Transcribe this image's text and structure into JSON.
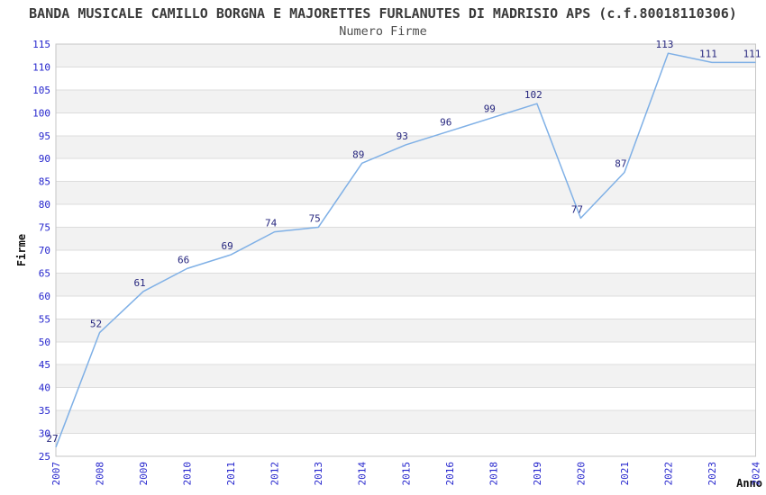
{
  "chart_data": {
    "type": "line",
    "title": "BANDA MUSICALE CAMILLO BORGNA E MAJORETTES FURLANUTES DI MADRISIO APS (c.f.80018110306)",
    "subtitle": "Numero Firme",
    "xlabel": "Anno",
    "ylabel": "Firme",
    "categories": [
      "2007",
      "2008",
      "2009",
      "2010",
      "2011",
      "2012",
      "2013",
      "2014",
      "2015",
      "2016",
      "2018",
      "2019",
      "2020",
      "2021",
      "2022",
      "2023",
      "2024"
    ],
    "values": [
      27,
      52,
      61,
      66,
      69,
      74,
      75,
      89,
      93,
      96,
      99,
      102,
      77,
      87,
      113,
      111,
      111
    ],
    "ylim": [
      25,
      115
    ],
    "ytick_step": 5,
    "grid": true,
    "legend": "none",
    "band_pattern": "alternating horizontal bands of 5 units, gray topmost",
    "style": {
      "line_color": "#7fb0e6",
      "tick_label_color": "#2525cd",
      "data_label_color": "#26267e",
      "band_fill": "#f2f2f2",
      "gridline_color": "#dcdcdc",
      "border_color": "#c6c6c6",
      "title_color": "#3a3a3a",
      "subtitle_color": "#4d4d4d",
      "axis_title_color": "#111111",
      "background": "#ffffff"
    }
  }
}
